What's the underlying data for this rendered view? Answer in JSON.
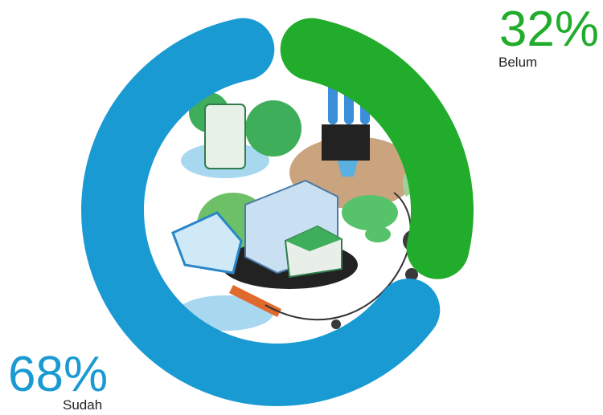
{
  "chart_data": {
    "type": "donut",
    "categories": [
      "Sudah",
      "Belum"
    ],
    "values": [
      68,
      32
    ],
    "value_labels": [
      "68%",
      "32%"
    ],
    "colors": [
      "#1a9ad3",
      "#22ac2b"
    ]
  }
}
